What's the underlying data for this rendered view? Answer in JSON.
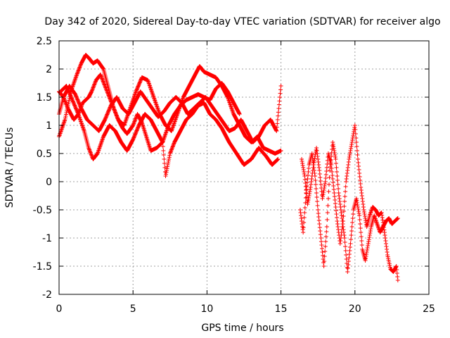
{
  "chart_data": {
    "type": "scatter",
    "title": "Day 342 of 2020, Sidereal Day-to-day VTEC variation (SDTVAR) for receiver algo",
    "xlabel": "GPS time / hours",
    "ylabel": "SDTVAR / TECUs",
    "xlim": [
      0,
      25
    ],
    "ylim": [
      -2,
      2.5
    ],
    "xticks": [
      0,
      5,
      10,
      15,
      20,
      25
    ],
    "xtick_labels": [
      "0",
      "5",
      "10",
      "15",
      "20",
      "25"
    ],
    "yticks": [
      -2,
      -1.5,
      -1,
      -0.5,
      0,
      0.5,
      1,
      1.5,
      2,
      2.5
    ],
    "ytick_labels": [
      "-2",
      "-1.5",
      "-1",
      "-0.5",
      "0",
      "0.5",
      "1",
      "1.5",
      "2",
      "2.5"
    ],
    "grid": true,
    "marker": "+",
    "color": "#ff0000",
    "series": [
      {
        "name": "trace-1",
        "x": [
          0.0,
          0.4,
          0.8,
          1.2,
          1.5,
          1.8,
          2.0,
          2.3,
          2.6,
          3.0,
          3.4,
          3.7,
          4.0,
          4.4,
          4.8,
          5.2,
          5.6,
          6.0,
          6.4,
          6.8,
          7.2,
          7.6,
          8.0,
          8.4,
          8.8,
          9.2,
          9.5,
          9.8,
          10.2,
          10.6,
          11.0,
          11.4,
          11.8,
          12.2,
          12.6,
          13.0,
          13.4,
          13.8,
          14.2,
          14.6,
          15.0
        ],
        "y": [
          0.8,
          1.1,
          1.6,
          1.9,
          2.1,
          2.25,
          2.2,
          2.1,
          2.15,
          2.0,
          1.6,
          1.3,
          1.1,
          1.0,
          1.3,
          1.6,
          1.85,
          1.8,
          1.5,
          1.2,
          1.0,
          0.9,
          1.2,
          1.5,
          1.7,
          1.9,
          2.05,
          1.95,
          1.9,
          1.85,
          1.7,
          1.5,
          1.2,
          1.0,
          0.8,
          0.7,
          0.8,
          0.6,
          0.55,
          0.5,
          0.55
        ]
      },
      {
        "name": "trace-2",
        "x": [
          0.0,
          0.3,
          0.6,
          1.0,
          1.3,
          1.6,
          2.0,
          2.2,
          2.5,
          2.8,
          3.1,
          3.4,
          3.7,
          4.0,
          4.3,
          4.6,
          5.0,
          5.3,
          5.6,
          5.9,
          6.2,
          6.6,
          7.0,
          7.4,
          7.8,
          8.2,
          8.6,
          9.0,
          9.4,
          9.8,
          10.2,
          10.6,
          11.0,
          11.4,
          11.8,
          12.2
        ],
        "y": [
          1.6,
          1.5,
          1.3,
          1.1,
          1.2,
          1.4,
          1.5,
          1.6,
          1.8,
          1.9,
          1.7,
          1.5,
          1.3,
          1.1,
          0.95,
          0.85,
          1.0,
          1.2,
          1.05,
          0.8,
          0.55,
          0.6,
          0.7,
          1.0,
          1.2,
          1.35,
          1.45,
          1.5,
          1.55,
          1.5,
          1.45,
          1.65,
          1.75,
          1.6,
          1.4,
          1.2
        ]
      },
      {
        "name": "trace-3",
        "x": [
          0.1,
          0.5,
          0.9,
          1.3,
          1.7,
          2.0,
          2.3,
          2.6,
          3.0,
          3.4,
          3.8,
          4.2,
          4.6,
          5.0,
          5.4,
          5.8,
          6.2,
          6.6,
          7.0,
          7.2,
          7.5,
          7.8,
          8.2,
          8.6,
          9.0,
          9.4,
          9.8,
          10.2,
          10.6,
          11.0,
          11.5,
          12.0,
          12.5,
          13.0,
          13.5,
          14.0,
          14.4,
          14.8
        ],
        "y": [
          1.6,
          1.7,
          1.45,
          1.2,
          0.9,
          0.6,
          0.4,
          0.5,
          0.8,
          1.0,
          0.9,
          0.7,
          0.55,
          0.75,
          1.0,
          1.2,
          1.1,
          0.9,
          0.7,
          0.1,
          0.5,
          0.7,
          0.9,
          1.1,
          1.2,
          1.35,
          1.4,
          1.2,
          1.1,
          0.95,
          0.7,
          0.5,
          0.3,
          0.4,
          0.6,
          0.45,
          0.3,
          0.4
        ]
      },
      {
        "name": "trace-4",
        "x": [
          0.0,
          0.3,
          0.7,
          1.1,
          1.5,
          1.9,
          2.3,
          2.7,
          3.1,
          3.5,
          3.9,
          4.3,
          4.7,
          5.1,
          5.5,
          5.9,
          6.3,
          6.7,
          7.1,
          7.5,
          7.9,
          8.3,
          8.7,
          9.1,
          9.5,
          9.9,
          10.3,
          10.7,
          11.1,
          11.5,
          11.9,
          12.3,
          12.7,
          13.1,
          13.5,
          13.9,
          14.3,
          14.7,
          15.0
        ],
        "y": [
          1.2,
          1.5,
          1.7,
          1.55,
          1.3,
          1.1,
          1.0,
          0.9,
          1.1,
          1.35,
          1.5,
          1.3,
          1.2,
          1.4,
          1.6,
          1.45,
          1.3,
          1.15,
          1.25,
          1.4,
          1.5,
          1.4,
          1.2,
          1.3,
          1.4,
          1.5,
          1.35,
          1.2,
          1.05,
          0.9,
          0.95,
          1.1,
          0.9,
          0.7,
          0.8,
          1.0,
          1.1,
          0.9,
          1.7
        ]
      },
      {
        "name": "trace-5",
        "x": [
          16.3,
          16.5,
          16.7,
          16.9,
          17.1,
          17.3,
          17.5,
          17.7,
          17.9,
          18.1,
          18.3,
          18.5,
          18.7,
          18.9,
          19.1,
          19.3,
          19.5,
          19.7,
          19.9,
          20.1,
          20.3,
          20.5,
          20.7,
          20.9,
          21.1,
          21.3,
          21.5,
          21.7,
          21.9,
          22.1,
          22.3,
          22.5,
          22.7,
          22.9
        ],
        "y": [
          -0.5,
          -0.9,
          -0.2,
          0.3,
          0.5,
          0.1,
          -0.5,
          -1.0,
          -1.5,
          -0.8,
          0.2,
          0.7,
          0.4,
          -0.2,
          -0.6,
          -1.0,
          -1.6,
          -1.1,
          -0.5,
          -0.3,
          -0.6,
          -1.2,
          -1.4,
          -1.1,
          -0.8,
          -0.6,
          -0.75,
          -0.9,
          -0.8,
          -0.7,
          -0.65,
          -0.75,
          -0.7,
          -0.65
        ]
      },
      {
        "name": "trace-6",
        "x": [
          16.4,
          16.6,
          16.8,
          17.0,
          17.2,
          17.4,
          17.6,
          17.8,
          18.0,
          18.2,
          18.4,
          18.6,
          18.8,
          19.0,
          19.2,
          19.4,
          19.6,
          19.8,
          20.0,
          20.2,
          20.4,
          20.6,
          20.8,
          21.0,
          21.2,
          21.4,
          21.6,
          21.8,
          22.0,
          22.2,
          22.4,
          22.6,
          22.8,
          22.9
        ],
        "y": [
          0.4,
          0.1,
          -0.4,
          -0.1,
          0.3,
          0.6,
          0.2,
          -0.3,
          0.0,
          0.5,
          0.3,
          -0.2,
          -0.7,
          -1.1,
          -0.7,
          0.0,
          0.4,
          0.7,
          1.0,
          0.4,
          -0.1,
          -0.5,
          -0.8,
          -0.6,
          -0.45,
          -0.5,
          -0.6,
          -0.55,
          -0.9,
          -1.3,
          -1.55,
          -1.6,
          -1.5,
          -1.75
        ]
      }
    ]
  }
}
